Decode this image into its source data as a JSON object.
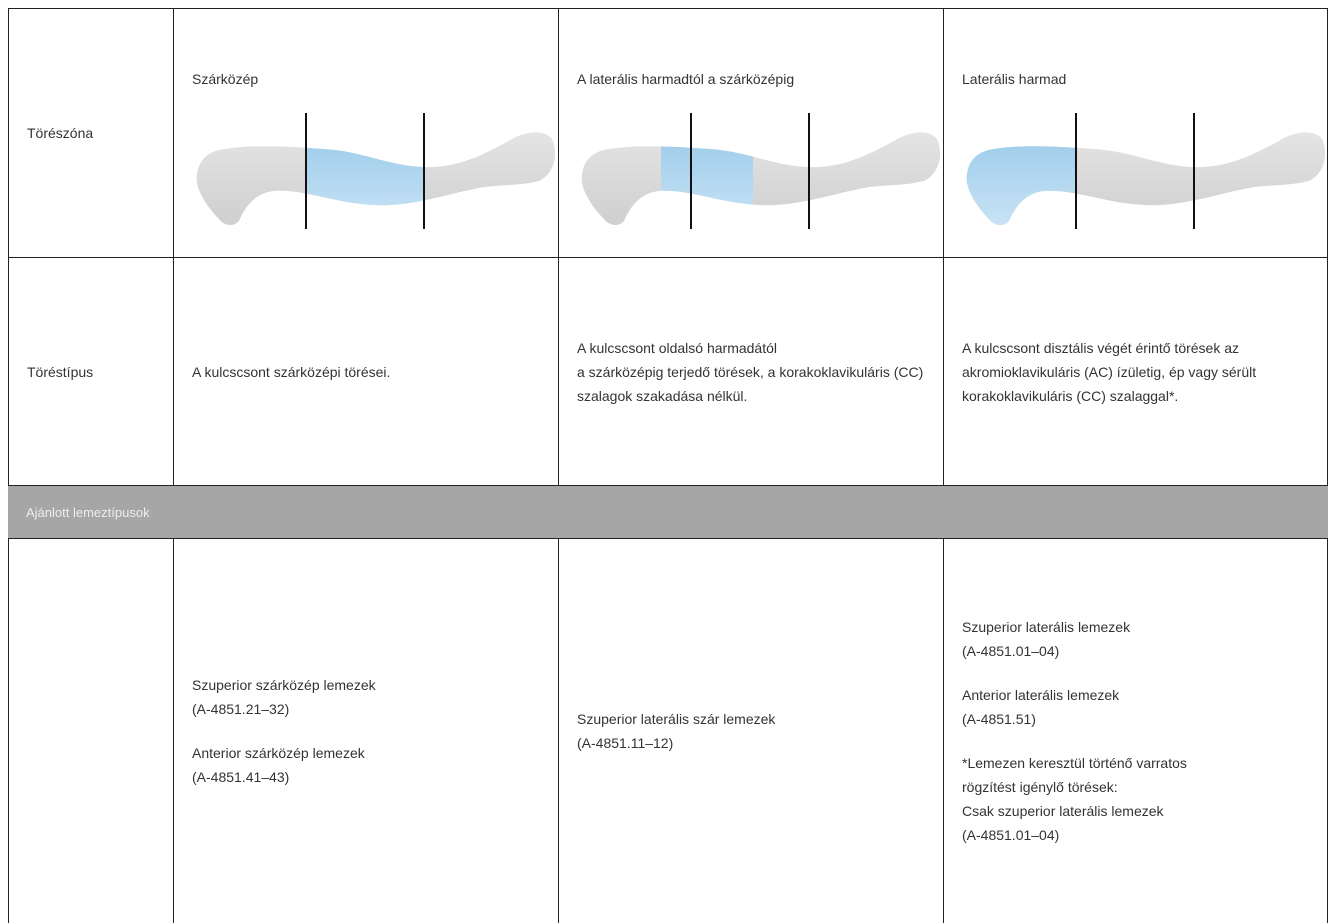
{
  "table": {
    "zone_row": {
      "label": "Törészóna",
      "cells": [
        "Szárközép",
        "A laterális harmadtól a szárközépig",
        "Laterális harmad"
      ]
    },
    "type_row": {
      "label": "Töréstípus",
      "cells": [
        [
          "A kulcscsont szárközépi törései."
        ],
        [
          "A kulcscsont oldalsó harmadától",
          "a szárközépig terjedő törések, a korakoklavikuláris (CC) szalagok szakadása nélkül."
        ],
        [
          "A kulcscsont disztális végét érintő törések az akromioklavikuláris (AC) ízületig, ép vagy sérült korakoklavikuláris (CC) szalaggal*."
        ]
      ]
    },
    "section": "Ajánlott lemeztípusok",
    "plates_row": {
      "cells": [
        [
          [
            "Szuperior szárközép lemezek",
            "(A-4851.21–32)"
          ],
          [
            "Anterior szárközép lemezek",
            "(A-4851.41–43)"
          ]
        ],
        [
          [
            "Szuperior laterális szár lemezek",
            "(A-4851.11–12)"
          ]
        ],
        [
          [
            "Szuperior laterális lemezek",
            "(A-4851.01–04)"
          ],
          [
            "Anterior laterális lemezek",
            "(A-4851.51)"
          ],
          [
            "*Lemezen keresztül történő varratos",
            "rögzítést igénylő törések:",
            "Csak szuperior laterális lemezek",
            "(A-4851.01–04)"
          ]
        ]
      ]
    }
  }
}
